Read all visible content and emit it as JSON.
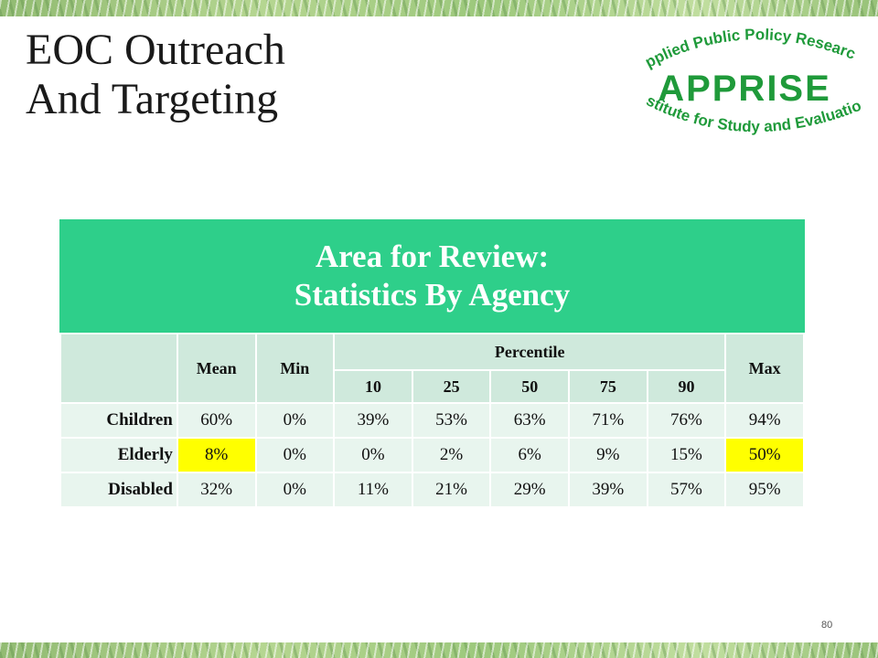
{
  "slide": {
    "title_lines": [
      "EOC Outreach",
      "And Targeting"
    ],
    "page_number": "80"
  },
  "logo": {
    "top_text": "Applied Public Policy Research",
    "name": "APPRISE",
    "bottom_text": "Institute for Study and Evaluation",
    "color": "#1f9a3a"
  },
  "table": {
    "banner_lines": [
      "Area for Review:",
      "Statistics By Agency"
    ],
    "banner_color": "#2ecf8a",
    "highlight_color": "#ffff00",
    "headers": {
      "mean": "Mean",
      "min": "Min",
      "percentile": "Percentile",
      "max": "Max",
      "percentiles": [
        "10",
        "25",
        "50",
        "75",
        "90"
      ]
    },
    "rows": [
      {
        "label": "Children",
        "values": [
          "60%",
          "0%",
          "39%",
          "53%",
          "63%",
          "71%",
          "76%",
          "94%"
        ],
        "highlight": [
          false,
          false,
          false,
          false,
          false,
          false,
          false,
          false
        ]
      },
      {
        "label": "Elderly",
        "values": [
          "8%",
          "0%",
          "0%",
          "2%",
          "6%",
          "9%",
          "15%",
          "50%"
        ],
        "highlight": [
          true,
          false,
          false,
          false,
          false,
          false,
          false,
          true
        ]
      },
      {
        "label": "Disabled",
        "values": [
          "32%",
          "0%",
          "11%",
          "21%",
          "29%",
          "39%",
          "57%",
          "95%"
        ],
        "highlight": [
          false,
          false,
          false,
          false,
          false,
          false,
          false,
          false
        ]
      }
    ]
  }
}
